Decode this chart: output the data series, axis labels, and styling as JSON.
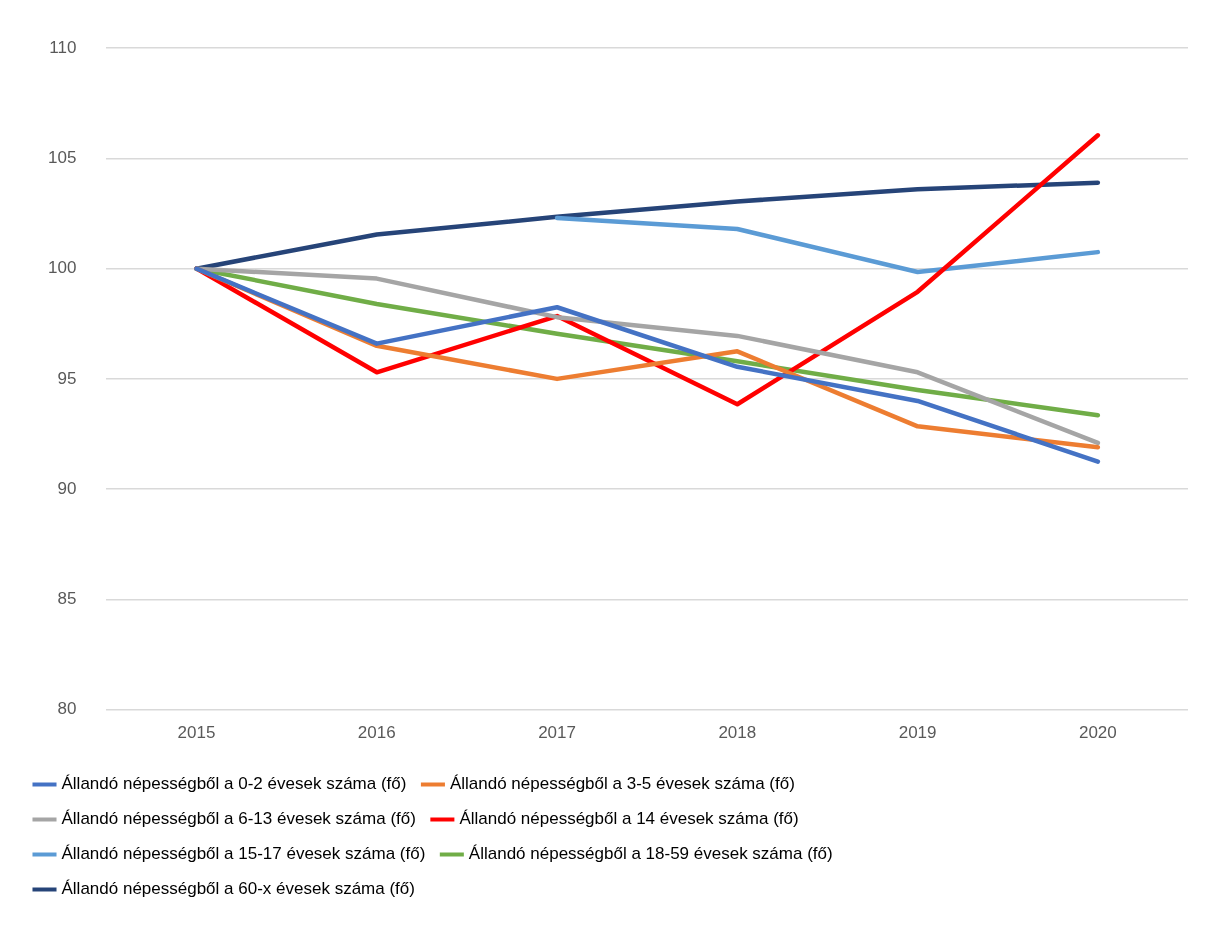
{
  "chart_data": {
    "type": "line",
    "categories": [
      "2015",
      "2016",
      "2017",
      "2018",
      "2019",
      "2020"
    ],
    "series": [
      {
        "name": "Állandó népességből a 0-2 évesek száma (fő)",
        "color": "#4472c4",
        "values": [
          100,
          96.6,
          98.25,
          95.55,
          94.0,
          91.25
        ]
      },
      {
        "name": "Állandó népességből a 3-5 évesek száma (fő)",
        "color": "#ed7d31",
        "values": [
          100,
          96.5,
          95.0,
          96.25,
          92.85,
          91.9
        ]
      },
      {
        "name": "Állandó népességből a 6-13 évesek száma (fő)",
        "color": "#a5a5a5",
        "values": [
          100,
          99.55,
          97.8,
          96.95,
          95.3,
          92.1
        ]
      },
      {
        "name": "Állandó népességből a 14 évesek száma (fő)",
        "color": "#ff0000",
        "values": [
          100,
          95.3,
          97.85,
          93.85,
          98.95,
          106.05
        ]
      },
      {
        "name": "Állandó népességből a 15-17 évesek száma (fő)",
        "color": "#5b9bd5",
        "values": [
          null,
          null,
          102.3,
          101.8,
          99.85,
          100.75
        ]
      },
      {
        "name": "Állandó népességből a 18-59 évesek száma (fő)",
        "color": "#70ad47",
        "values": [
          100,
          98.4,
          97.05,
          95.8,
          94.5,
          93.35
        ]
      },
      {
        "name": "Állandó népességből a 60-x évesek száma (fő)",
        "color": "#264478",
        "values": [
          100,
          101.55,
          102.35,
          103.05,
          103.6,
          103.9
        ]
      }
    ],
    "ylim": [
      80,
      110
    ],
    "yticks": [
      80,
      85,
      90,
      95,
      100,
      105,
      110
    ],
    "grid": "y",
    "legend": "bottom",
    "marker": "none",
    "line_style": "solid"
  }
}
